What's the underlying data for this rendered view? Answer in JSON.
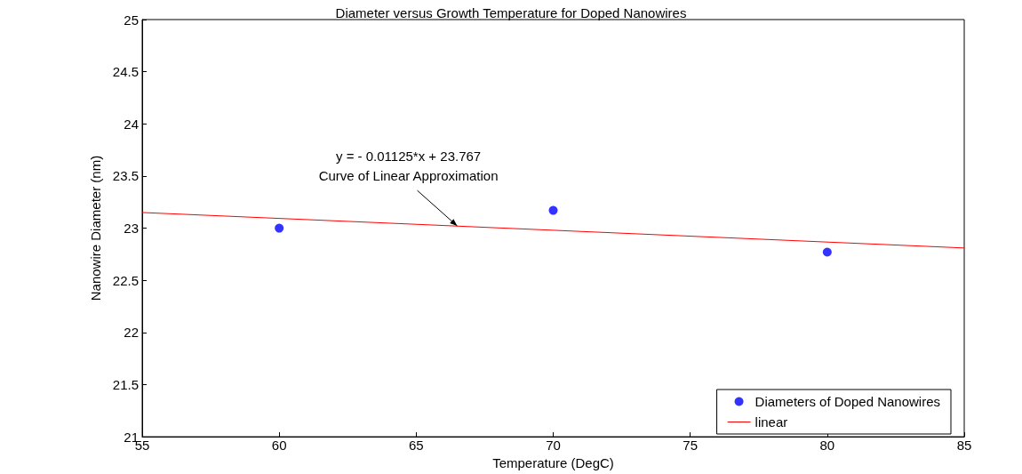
{
  "chart_data": {
    "type": "scatter",
    "title": "Diameter versus Growth Temperature for Doped Nanowires",
    "xlabel": "Temperature (DegC)",
    "ylabel": "Nanowire Diameter (nm)",
    "series": [
      {
        "name": "Diameters of Doped Nanowires",
        "color": "#0000ff",
        "x": [
          60,
          70,
          80
        ],
        "values": [
          23.0,
          23.17,
          22.77
        ],
        "marker": "circle"
      },
      {
        "name": "linear",
        "type": "line",
        "color": "#ff0000",
        "x": [
          55,
          85
        ],
        "values": [
          23.15,
          22.81
        ],
        "marker": "none"
      }
    ],
    "annotations": [
      {
        "text": "y = - 0.01125*x + 23.767\nCurve of Linear Approximation",
        "x": 66.5,
        "y": 23.02
      }
    ],
    "xlim": [
      55,
      85
    ],
    "xticks": [
      55,
      60,
      65,
      70,
      75,
      80,
      85
    ],
    "ylim": [
      21,
      25
    ],
    "yticks": [
      21,
      21.5,
      22,
      22.5,
      23,
      23.5,
      24,
      24.5,
      25
    ],
    "grid": false,
    "legend": "bottom right"
  }
}
